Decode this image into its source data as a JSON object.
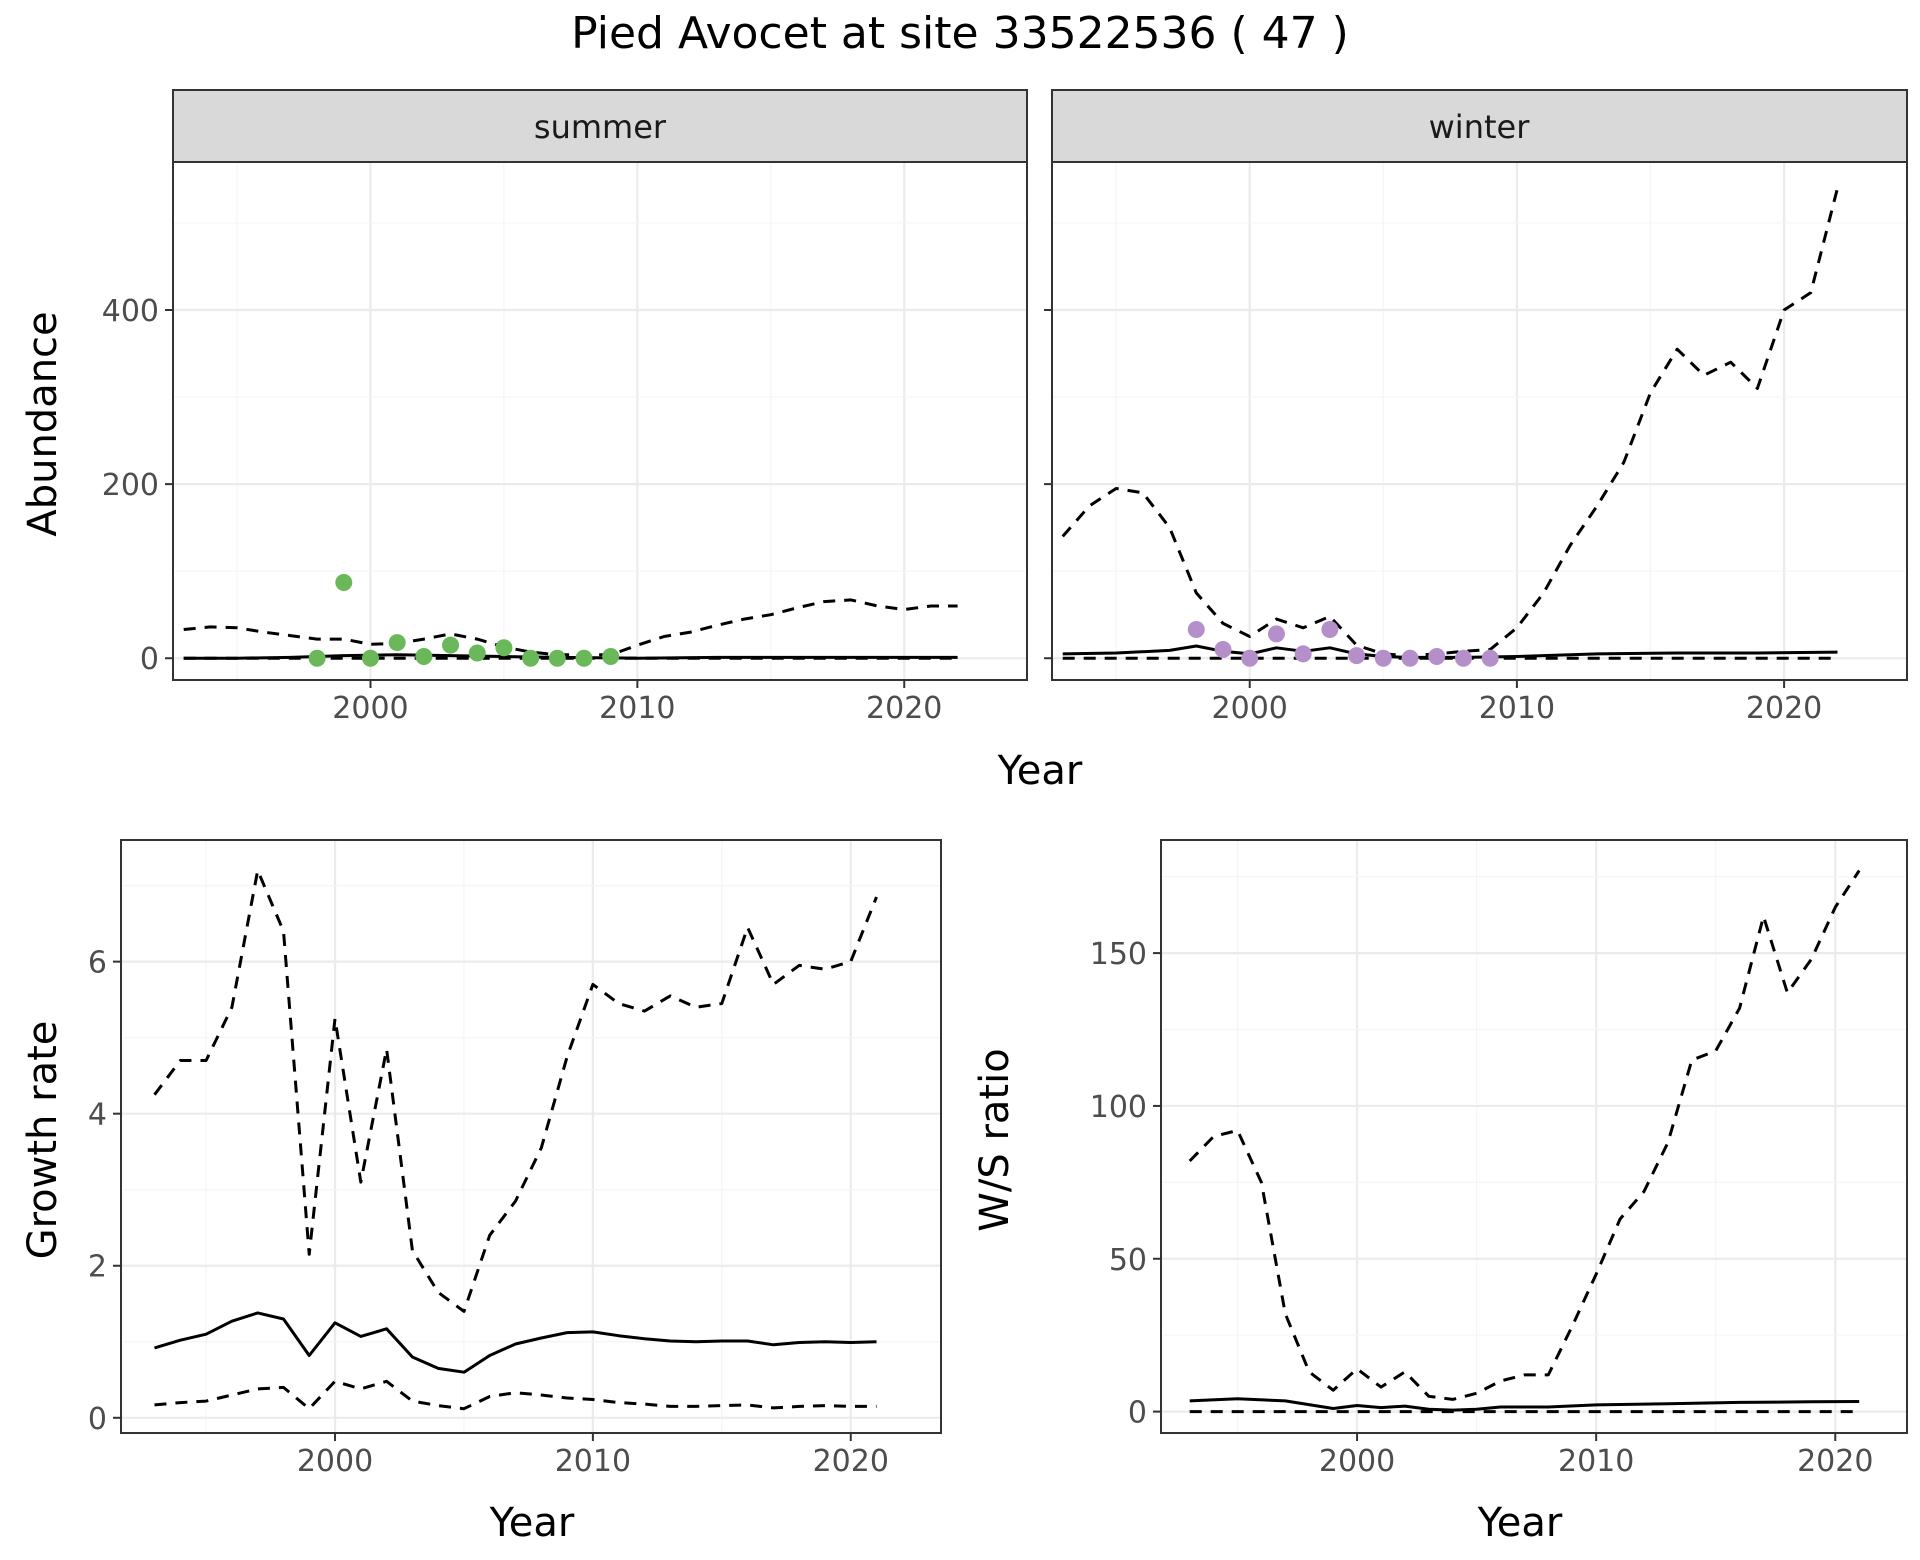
{
  "figure": {
    "title": "Pied Avocet at site 33522536 ( 47 )",
    "shared_xlabel": "Year"
  },
  "colors": {
    "summer_points": "#6ab85a",
    "winter_points": "#b48fca",
    "lines": "#000000",
    "strip_fill": "#d9d9d9",
    "grid_major": "#ebebeb",
    "grid_minor": "#f5f5f5",
    "panel_border": "#333333"
  },
  "chart_data": [
    {
      "id": "summer",
      "type": "line",
      "strip_label": "summer",
      "xlabel": "",
      "ylabel": "Abundance",
      "xlim": [
        1992.6,
        2024.6
      ],
      "ylim": [
        -25,
        570
      ],
      "xticks": [
        2000,
        2010,
        2020
      ],
      "yticks": [
        0,
        200,
        400
      ],
      "grid": true,
      "point_color": "#6ab85a",
      "series": [
        {
          "style": "solid",
          "x": [
            1993,
            1995,
            1997,
            1999,
            2001,
            2003,
            2005,
            2007,
            2010,
            2013,
            2016,
            2019,
            2022
          ],
          "y": [
            0,
            0,
            1,
            3,
            4,
            3,
            2,
            1,
            0,
            1,
            1,
            1,
            1
          ]
        },
        {
          "style": "dashed",
          "x": [
            1993,
            1994,
            1995,
            1996,
            1997,
            1998,
            1999,
            2000,
            2001,
            2002,
            2003,
            2004,
            2005,
            2006,
            2007,
            2008,
            2009,
            2010,
            2011,
            2012,
            2013,
            2014,
            2015,
            2016,
            2017,
            2018,
            2019,
            2020,
            2021,
            2022
          ],
          "y": [
            33,
            36,
            35,
            30,
            26,
            22,
            22,
            16,
            17,
            22,
            28,
            22,
            13,
            7,
            4,
            4,
            4,
            15,
            25,
            30,
            38,
            45,
            50,
            58,
            65,
            67,
            60,
            56,
            60,
            60
          ]
        },
        {
          "style": "dashed",
          "x": [
            1993,
            2000,
            2010,
            2022
          ],
          "y": [
            0,
            0,
            0,
            0
          ]
        }
      ],
      "points": {
        "x": [
          1998,
          1999,
          2000,
          2001,
          2002,
          2003,
          2004,
          2005,
          2006,
          2007,
          2008,
          2009
        ],
        "y": [
          0,
          87,
          0,
          18,
          2,
          15,
          6,
          12,
          0,
          0,
          0,
          2
        ]
      }
    },
    {
      "id": "winter",
      "type": "line",
      "strip_label": "winter",
      "xlabel": "",
      "ylabel": "",
      "xlim": [
        1992.6,
        2024.6
      ],
      "ylim": [
        -25,
        570
      ],
      "xticks": [
        2000,
        2010,
        2020
      ],
      "yticks": [
        0,
        200,
        400
      ],
      "grid": true,
      "point_color": "#b48fca",
      "series": [
        {
          "style": "solid",
          "x": [
            1993,
            1995,
            1997,
            1998,
            1999,
            2000,
            2001,
            2002,
            2003,
            2004,
            2005,
            2006,
            2008,
            2010,
            2013,
            2016,
            2019,
            2022
          ],
          "y": [
            5,
            6,
            9,
            14,
            8,
            5,
            12,
            8,
            12,
            5,
            2,
            1,
            1,
            2,
            5,
            6,
            6,
            7
          ]
        },
        {
          "style": "dashed",
          "x": [
            1993,
            1994,
            1995,
            1996,
            1997,
            1998,
            1999,
            2000,
            2001,
            2002,
            2003,
            2004,
            2005,
            2006,
            2007,
            2008,
            2009,
            2010,
            2011,
            2012,
            2013,
            2014,
            2015,
            2016,
            2017,
            2018,
            2019,
            2020,
            2021,
            2022
          ],
          "y": [
            140,
            175,
            195,
            190,
            150,
            75,
            40,
            25,
            45,
            35,
            48,
            15,
            5,
            3,
            5,
            8,
            10,
            35,
            75,
            130,
            175,
            225,
            305,
            355,
            325,
            340,
            310,
            400,
            420,
            540
          ]
        },
        {
          "style": "dashed",
          "x": [
            1993,
            2000,
            2010,
            2022
          ],
          "y": [
            0,
            0,
            0,
            0
          ]
        }
      ],
      "points": {
        "x": [
          1998,
          1999,
          2000,
          2001,
          2002,
          2003,
          2004,
          2005,
          2006,
          2007,
          2008,
          2009
        ],
        "y": [
          33,
          10,
          0,
          28,
          5,
          33,
          3,
          0,
          0,
          2,
          0,
          0
        ]
      }
    },
    {
      "id": "growth",
      "type": "line",
      "strip_label": "",
      "xlabel": "Year",
      "ylabel": "Growth rate",
      "xlim": [
        1991.7,
        2023.5
      ],
      "ylim": [
        -0.2,
        7.6
      ],
      "xticks": [
        2000,
        2010,
        2020
      ],
      "yticks": [
        0,
        2,
        4,
        6
      ],
      "grid": true,
      "series": [
        {
          "style": "solid",
          "x": [
            1993,
            1994,
            1995,
            1996,
            1997,
            1998,
            1999,
            2000,
            2001,
            2002,
            2003,
            2004,
            2005,
            2006,
            2007,
            2008,
            2009,
            2010,
            2011,
            2012,
            2013,
            2014,
            2015,
            2016,
            2017,
            2018,
            2019,
            2020,
            2021
          ],
          "y": [
            0.92,
            1.02,
            1.1,
            1.27,
            1.38,
            1.3,
            0.82,
            1.25,
            1.07,
            1.17,
            0.8,
            0.65,
            0.6,
            0.82,
            0.97,
            1.05,
            1.12,
            1.13,
            1.08,
            1.04,
            1.01,
            1.0,
            1.01,
            1.01,
            0.96,
            0.99,
            1.0,
            0.99,
            1.0
          ]
        },
        {
          "style": "dashed",
          "x": [
            1993,
            1994,
            1995,
            1996,
            1997,
            1998,
            1999,
            2000,
            2001,
            2002,
            2003,
            2004,
            2005,
            2006,
            2007,
            2008,
            2009,
            2010,
            2011,
            2012,
            2013,
            2014,
            2015,
            2016,
            2017,
            2018,
            2019,
            2020,
            2021
          ],
          "y": [
            4.25,
            4.7,
            4.7,
            5.4,
            7.2,
            6.4,
            2.15,
            5.25,
            3.1,
            4.85,
            2.2,
            1.65,
            1.4,
            2.4,
            2.85,
            3.55,
            4.75,
            5.7,
            5.45,
            5.35,
            5.55,
            5.4,
            5.45,
            6.45,
            5.7,
            5.95,
            5.9,
            6.0,
            6.85
          ]
        },
        {
          "style": "dashed",
          "x": [
            1993,
            1994,
            1995,
            1996,
            1997,
            1998,
            1999,
            2000,
            2001,
            2002,
            2003,
            2004,
            2005,
            2006,
            2007,
            2008,
            2009,
            2010,
            2011,
            2012,
            2013,
            2014,
            2015,
            2016,
            2017,
            2018,
            2019,
            2020,
            2021
          ],
          "y": [
            0.17,
            0.2,
            0.22,
            0.3,
            0.38,
            0.4,
            0.12,
            0.48,
            0.38,
            0.48,
            0.22,
            0.16,
            0.12,
            0.28,
            0.33,
            0.3,
            0.26,
            0.24,
            0.2,
            0.18,
            0.15,
            0.15,
            0.16,
            0.17,
            0.13,
            0.15,
            0.16,
            0.15,
            0.15
          ]
        }
      ]
    },
    {
      "id": "ws_ratio",
      "type": "line",
      "strip_label": "",
      "xlabel": "Year",
      "ylabel": "W/S ratio",
      "xlim": [
        1991.8,
        2023.0
      ],
      "ylim": [
        -7,
        187
      ],
      "xticks": [
        2000,
        2010,
        2020
      ],
      "yticks": [
        0,
        50,
        100,
        150
      ],
      "grid": true,
      "series": [
        {
          "style": "solid",
          "x": [
            1993,
            1995,
            1997,
            1999,
            2000,
            2001,
            2002,
            2003,
            2004,
            2005,
            2006,
            2008,
            2010,
            2013,
            2016,
            2019,
            2021
          ],
          "y": [
            3.5,
            4.2,
            3.5,
            1.0,
            2.0,
            1.3,
            1.8,
            0.8,
            0.5,
            0.8,
            1.5,
            1.5,
            2.2,
            2.6,
            3.0,
            3.2,
            3.3
          ]
        },
        {
          "style": "dashed",
          "x": [
            1993,
            1994,
            1995,
            1996,
            1997,
            1998,
            1999,
            2000,
            2001,
            2002,
            2003,
            2004,
            2005,
            2006,
            2007,
            2008,
            2009,
            2010,
            2011,
            2012,
            2013,
            2014,
            2015,
            2016,
            2017,
            2018,
            2019,
            2020,
            2021
          ],
          "y": [
            82,
            90,
            92,
            75,
            32,
            13,
            7,
            14,
            8,
            13,
            5,
            4,
            6,
            10,
            12,
            12,
            28,
            45,
            63,
            72,
            88,
            115,
            118,
            132,
            162,
            137,
            148,
            165,
            177
          ]
        },
        {
          "style": "dashed",
          "x": [
            1993,
            2000,
            2010,
            2021
          ],
          "y": [
            0,
            0,
            0,
            0
          ]
        }
      ]
    }
  ]
}
